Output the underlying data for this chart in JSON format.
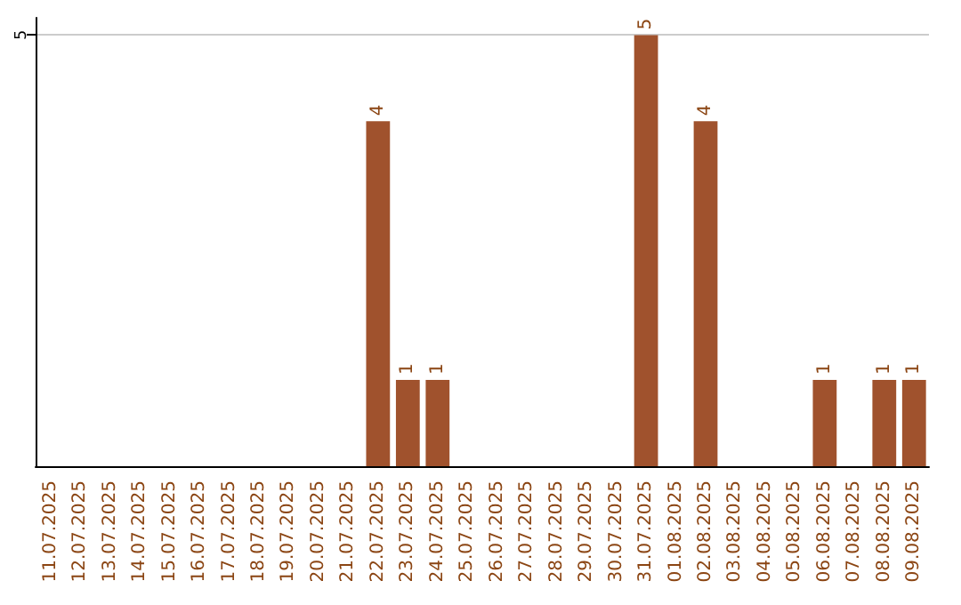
{
  "chart_data": {
    "type": "bar",
    "categories": [
      "11.07.2025",
      "12.07.2025",
      "13.07.2025",
      "14.07.2025",
      "15.07.2025",
      "16.07.2025",
      "17.07.2025",
      "18.07.2025",
      "19.07.2025",
      "20.07.2025",
      "21.07.2025",
      "22.07.2025",
      "23.07.2025",
      "24.07.2025",
      "25.07.2025",
      "26.07.2025",
      "27.07.2025",
      "28.07.2025",
      "29.07.2025",
      "30.07.2025",
      "31.07.2025",
      "01.08.2025",
      "02.08.2025",
      "03.08.2025",
      "04.08.2025",
      "05.08.2025",
      "06.08.2025",
      "07.08.2025",
      "08.08.2025",
      "09.08.2025"
    ],
    "values": [
      null,
      null,
      null,
      null,
      null,
      null,
      null,
      null,
      null,
      null,
      null,
      4,
      1,
      1,
      null,
      null,
      null,
      null,
      null,
      null,
      5,
      null,
      4,
      null,
      null,
      null,
      1,
      null,
      1,
      1
    ],
    "color": "#a0522d",
    "ylim": [
      0,
      5.2
    ],
    "yticks": [
      5
    ],
    "grid": "y",
    "data_labels": true
  }
}
